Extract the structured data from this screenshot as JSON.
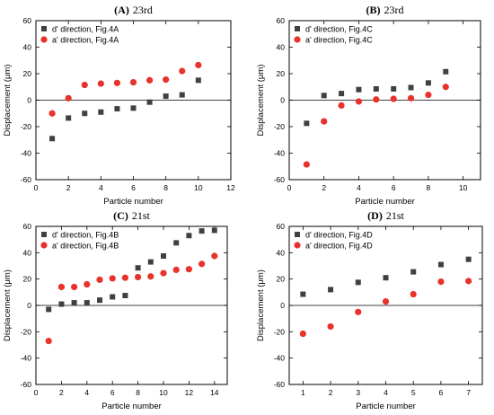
{
  "chart_data": [
    {
      "type": "scatter",
      "panel_letter": "(A)",
      "panel_title": "23rd",
      "xlabel": "Particle number",
      "ylabel": "Displacement (μm)",
      "xlim": [
        0,
        12
      ],
      "ylim": [
        -60,
        60
      ],
      "xticks": [
        0,
        2,
        4,
        6,
        8,
        10,
        12
      ],
      "yticks": [
        -60,
        -40,
        -20,
        0,
        20,
        40,
        60
      ],
      "zero_line": true,
      "legend_position": "top-left",
      "series": [
        {
          "name": "d' direction, Fig.4A",
          "marker": "square",
          "color": "#404040",
          "x": [
            1,
            2,
            3,
            4,
            5,
            6,
            7,
            8,
            9,
            10
          ],
          "y": [
            -29,
            -13.5,
            -10,
            -9,
            -6.5,
            -6,
            -1.5,
            3,
            4,
            15
          ]
        },
        {
          "name": "a' direction, Fig.4A",
          "marker": "circle",
          "color": "#e8322b",
          "x": [
            1,
            2,
            3,
            4,
            5,
            6,
            7,
            8,
            9,
            10
          ],
          "y": [
            -10,
            1.5,
            11.5,
            12.5,
            13,
            13.5,
            15,
            15.5,
            22,
            26.5
          ]
        }
      ]
    },
    {
      "type": "scatter",
      "panel_letter": "(B)",
      "panel_title": "23rd",
      "xlabel": "Particle number",
      "ylabel": "Displacement (μm)",
      "xlim": [
        0,
        11
      ],
      "ylim": [
        -60,
        60
      ],
      "xticks": [
        0,
        2,
        4,
        6,
        8,
        10
      ],
      "yticks": [
        -60,
        -40,
        -20,
        0,
        20,
        40,
        60
      ],
      "zero_line": true,
      "legend_position": "top-left",
      "series": [
        {
          "name": "d' direction, Fig.4C",
          "marker": "square",
          "color": "#404040",
          "x": [
            1,
            2,
            3,
            4,
            5,
            6,
            7,
            8,
            9
          ],
          "y": [
            -17.5,
            3.5,
            5,
            8,
            8.5,
            8.5,
            9.5,
            13,
            21.5
          ]
        },
        {
          "name": "a' direction, Fig.4C",
          "marker": "circle",
          "color": "#e8322b",
          "x": [
            1,
            2,
            3,
            4,
            5,
            6,
            7,
            8,
            9
          ],
          "y": [
            -48.5,
            -16,
            -4,
            -1,
            0.5,
            1,
            1.5,
            4,
            10
          ]
        }
      ]
    },
    {
      "type": "scatter",
      "panel_letter": "(C)",
      "panel_title": "21st",
      "xlabel": "Particle number",
      "ylabel": "Displacement (μm)",
      "xlim": [
        0,
        15
      ],
      "ylim": [
        -60,
        60
      ],
      "xticks": [
        0,
        2,
        4,
        6,
        8,
        10,
        12,
        14
      ],
      "yticks": [
        -60,
        -40,
        -20,
        0,
        20,
        40,
        60
      ],
      "zero_line": true,
      "legend_position": "top-left",
      "series": [
        {
          "name": "d' direction, Fig.4B",
          "marker": "square",
          "color": "#404040",
          "x": [
            1,
            2,
            3,
            4,
            5,
            6,
            7,
            8,
            9,
            10,
            11,
            12,
            13,
            14
          ],
          "y": [
            -3,
            1,
            2,
            2,
            4,
            6.5,
            7.5,
            28.5,
            33,
            37.5,
            47.5,
            53,
            56.5,
            57
          ]
        },
        {
          "name": "a' direction, Fig.4B",
          "marker": "circle",
          "color": "#e8322b",
          "x": [
            1,
            2,
            3,
            4,
            5,
            6,
            7,
            8,
            9,
            10,
            11,
            12,
            13,
            14
          ],
          "y": [
            -27,
            14,
            14,
            16,
            19.5,
            20.5,
            21,
            21.5,
            22,
            24.5,
            27,
            27.5,
            31.5,
            37.5
          ]
        }
      ]
    },
    {
      "type": "scatter",
      "panel_letter": "(D)",
      "panel_title": "21st",
      "xlabel": "Particle number",
      "ylabel": "Displacement (μm)",
      "xlim": [
        0.5,
        7.5
      ],
      "ylim": [
        -60,
        60
      ],
      "xticks": [
        1,
        2,
        3,
        4,
        5,
        6,
        7
      ],
      "yticks": [
        -60,
        -40,
        -20,
        0,
        20,
        40,
        60
      ],
      "zero_line": true,
      "legend_position": "top-left",
      "series": [
        {
          "name": "d' direction, Fig.4D",
          "marker": "square",
          "color": "#404040",
          "x": [
            1,
            2,
            3,
            4,
            5,
            6,
            7
          ],
          "y": [
            8.5,
            12,
            17.5,
            21,
            25.5,
            31,
            35
          ]
        },
        {
          "name": "a' direction, Fig.4D",
          "marker": "circle",
          "color": "#e8322b",
          "x": [
            1,
            2,
            3,
            4,
            5,
            6,
            7
          ],
          "y": [
            -21.5,
            -16,
            -5,
            3,
            8.5,
            18,
            18.5
          ]
        }
      ]
    }
  ]
}
